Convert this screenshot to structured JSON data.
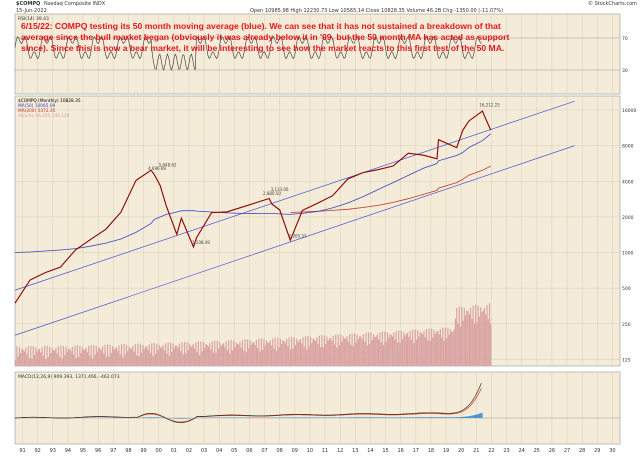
{
  "header": {
    "symbol": "$COMPQ",
    "name": "Nasdaq Composite INDX",
    "date": "15-Jun-2022",
    "stats": "Open 10985.98  High 12230.73  Low 10565.14  Close 10828.35  Volume 46.2B  Chg -1350.00 (-11.07%)",
    "brand": "© StockCharts.com"
  },
  "annotation": "6/15/22:  COMPQ testing its 50 month moving average (blue).  We can see that it has not sustained a breakdown of that average since the bull market began (obviously it was already below it in '09, but the 50 month MA has acted as support since).  Since this is now a bear market, it will be interesting to see how the market reacts to this first test of the 50 MA.",
  "panels": {
    "rsi": {
      "label": "RSI(14) 39.43",
      "levels": [
        70,
        30
      ]
    },
    "price": {
      "legend": [
        "$COMPQ (Monthly) 10828.35",
        "MA(50) 10065.09",
        "MA(200) 5372.35",
        "Volume 46,205,146,128"
      ]
    },
    "macd": {
      "label": "MACD(12,26,9) 909.393, 1371.466, -462.073"
    }
  },
  "chart_data": {
    "type": "line",
    "title": "$COMPQ Nasdaq Composite INDX",
    "x_start_year": 1991,
    "x": [
      1991,
      1992,
      1993,
      1994,
      1995,
      1996,
      1997,
      1998,
      1999,
      2000,
      2000.2,
      2000.6,
      2001,
      2001.7,
      2002,
      2002.8,
      2003,
      2004,
      2005,
      2006,
      2007,
      2007.8,
      2008,
      2008.5,
      2009.2,
      2010,
      2011,
      2012,
      2013,
      2014,
      2015,
      2016,
      2017,
      2018,
      2018.9,
      2019,
      2020.2,
      2020.6,
      2021,
      2021.9,
      2022.45
    ],
    "close": [
      373,
      586,
      677,
      751,
      1052,
      1291,
      1570,
      2193,
      4069,
      4963,
      4573,
      3673,
      2470,
      1423,
      1950,
      1114,
      1335,
      2175,
      2205,
      2415,
      2652,
      2859,
      2560,
      2292,
      1268,
      2269,
      2605,
      3019,
      4177,
      4736,
      5007,
      5383,
      6903,
      6635,
      6192,
      8973,
      7700,
      10745,
      12888,
      15645,
      10828
    ],
    "ma50": [
      1000,
      1010,
      1030,
      1050,
      1080,
      1130,
      1200,
      1300,
      1480,
      1760,
      1900,
      2000,
      2100,
      2200,
      2250,
      2260,
      2240,
      2200,
      2160,
      2140,
      2130,
      2140,
      2140,
      2120,
      2100,
      2140,
      2220,
      2380,
      2620,
      2960,
      3400,
      3900,
      4480,
      5150,
      5650,
      5950,
      6600,
      7000,
      7700,
      8800,
      10065
    ],
    "ma200": [
      null,
      null,
      null,
      null,
      null,
      null,
      null,
      null,
      null,
      null,
      null,
      null,
      null,
      null,
      null,
      null,
      null,
      null,
      null,
      null,
      null,
      null,
      null,
      null,
      2180,
      2200,
      2230,
      2270,
      2320,
      2400,
      2500,
      2650,
      2850,
      3100,
      3350,
      3500,
      3900,
      4150,
      4500,
      4950,
      5372
    ],
    "labels_text": [
      "4,696.69",
      "5,048.62",
      "1,108.49",
      "2,880.50",
      "3,133.00",
      "1,265.52",
      "16,212.23"
    ],
    "y_scale": "log",
    "y_ticks": [
      125,
      250,
      500,
      1000,
      2000,
      4000,
      8000,
      16000
    ],
    "channel": [
      {
        "x1": 1991,
        "y1": 480,
        "x2": 2028,
        "y2": 19000
      },
      {
        "x1": 1991,
        "y1": 200,
        "x2": 2028,
        "y2": 8000
      }
    ],
    "volume_series": "Volume",
    "rsi": {
      "range": [
        0,
        100
      ],
      "last": 39.43
    },
    "macd": {
      "last": 909.393,
      "signal": 1371.466,
      "hist": -462.073
    },
    "x_tick_labels": [
      "91",
      "92",
      "93",
      "94",
      "95",
      "96",
      "97",
      "98",
      "99",
      "00",
      "01",
      "02",
      "03",
      "04",
      "05",
      "06",
      "07",
      "08",
      "09",
      "10",
      "11",
      "12",
      "13",
      "14",
      "15",
      "16",
      "17",
      "18",
      "19",
      "20",
      "21",
      "22",
      "23",
      "24",
      "25",
      "26",
      "27",
      "28",
      "29",
      "30"
    ],
    "grid": true,
    "colors": {
      "price": "#8b0000",
      "ma50": "#3a44c8",
      "ma200": "#c0392b",
      "volume": "#d9a3a3",
      "background": "#f4ecd8",
      "macd": "#333333",
      "macd_signal": "#e03a1a",
      "hist": "#3f8ed0",
      "rsi": "#333333"
    }
  }
}
